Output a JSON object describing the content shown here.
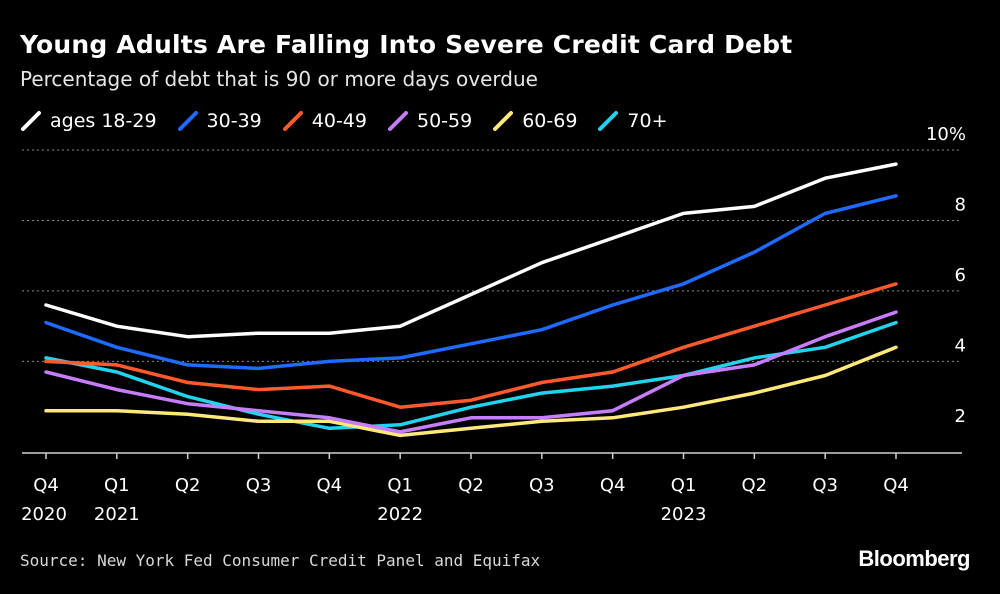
{
  "chart_data": {
    "type": "line",
    "title": "Young Adults Are Falling Into Severe Credit Card Debt",
    "subtitle": "Percentage of debt that is 90 or more days overdue",
    "categories": [
      "Q4 2020",
      "Q1 2021",
      "Q2",
      "Q3",
      "Q4",
      "Q1 2022",
      "Q2",
      "Q3",
      "Q4",
      "Q1 2023",
      "Q2",
      "Q3",
      "Q4"
    ],
    "x_ticks": [
      {
        "top": "Q4",
        "bottom": "2020"
      },
      {
        "top": "Q1",
        "bottom": "2021"
      },
      {
        "top": "Q2",
        "bottom": ""
      },
      {
        "top": "Q3",
        "bottom": ""
      },
      {
        "top": "Q4",
        "bottom": ""
      },
      {
        "top": "Q1",
        "bottom": "2022"
      },
      {
        "top": "Q2",
        "bottom": ""
      },
      {
        "top": "Q3",
        "bottom": ""
      },
      {
        "top": "Q4",
        "bottom": ""
      },
      {
        "top": "Q1",
        "bottom": "2023"
      },
      {
        "top": "Q2",
        "bottom": ""
      },
      {
        "top": "Q3",
        "bottom": ""
      },
      {
        "top": "Q4",
        "bottom": ""
      }
    ],
    "y_ticks": [
      {
        "value": 2,
        "label": "2"
      },
      {
        "value": 4,
        "label": "4"
      },
      {
        "value": 6,
        "label": "6"
      },
      {
        "value": 8,
        "label": "8"
      },
      {
        "value": 10,
        "label": "10%"
      }
    ],
    "ylim": [
      1.4,
      10.0
    ],
    "grid": true,
    "legend_position": "top-left",
    "series": [
      {
        "name": "ages 18-29",
        "color": "#ffffff",
        "values": [
          5.6,
          5.0,
          4.7,
          4.8,
          4.8,
          5.0,
          5.9,
          6.8,
          7.5,
          8.2,
          8.4,
          9.2,
          9.6
        ]
      },
      {
        "name": "30-39",
        "color": "#1f6bff",
        "values": [
          5.1,
          4.4,
          3.9,
          3.8,
          4.0,
          4.1,
          4.5,
          4.9,
          5.6,
          6.2,
          7.1,
          8.2,
          8.7
        ]
      },
      {
        "name": "40-49",
        "color": "#ff5a2c",
        "values": [
          4.0,
          3.9,
          3.4,
          3.2,
          3.3,
          2.7,
          2.9,
          3.4,
          3.7,
          4.4,
          5.0,
          5.6,
          6.2
        ]
      },
      {
        "name": "50-59",
        "color": "#c77dff",
        "values": [
          3.7,
          3.2,
          2.8,
          2.6,
          2.4,
          2.0,
          2.4,
          2.4,
          2.6,
          3.6,
          3.9,
          4.7,
          5.4
        ]
      },
      {
        "name": "60-69",
        "color": "#ffe97a",
        "values": [
          2.6,
          2.6,
          2.5,
          2.3,
          2.3,
          1.9,
          2.1,
          2.3,
          2.4,
          2.7,
          3.1,
          3.6,
          4.4
        ]
      },
      {
        "name": "70+",
        "color": "#22d3ee",
        "values": [
          4.1,
          3.7,
          3.0,
          2.5,
          2.1,
          2.2,
          2.7,
          3.1,
          3.3,
          3.6,
          4.1,
          4.4,
          5.1
        ]
      }
    ]
  },
  "footer": {
    "source": "Source: New York Fed Consumer Credit Panel and Equifax",
    "brand": "Bloomberg"
  }
}
